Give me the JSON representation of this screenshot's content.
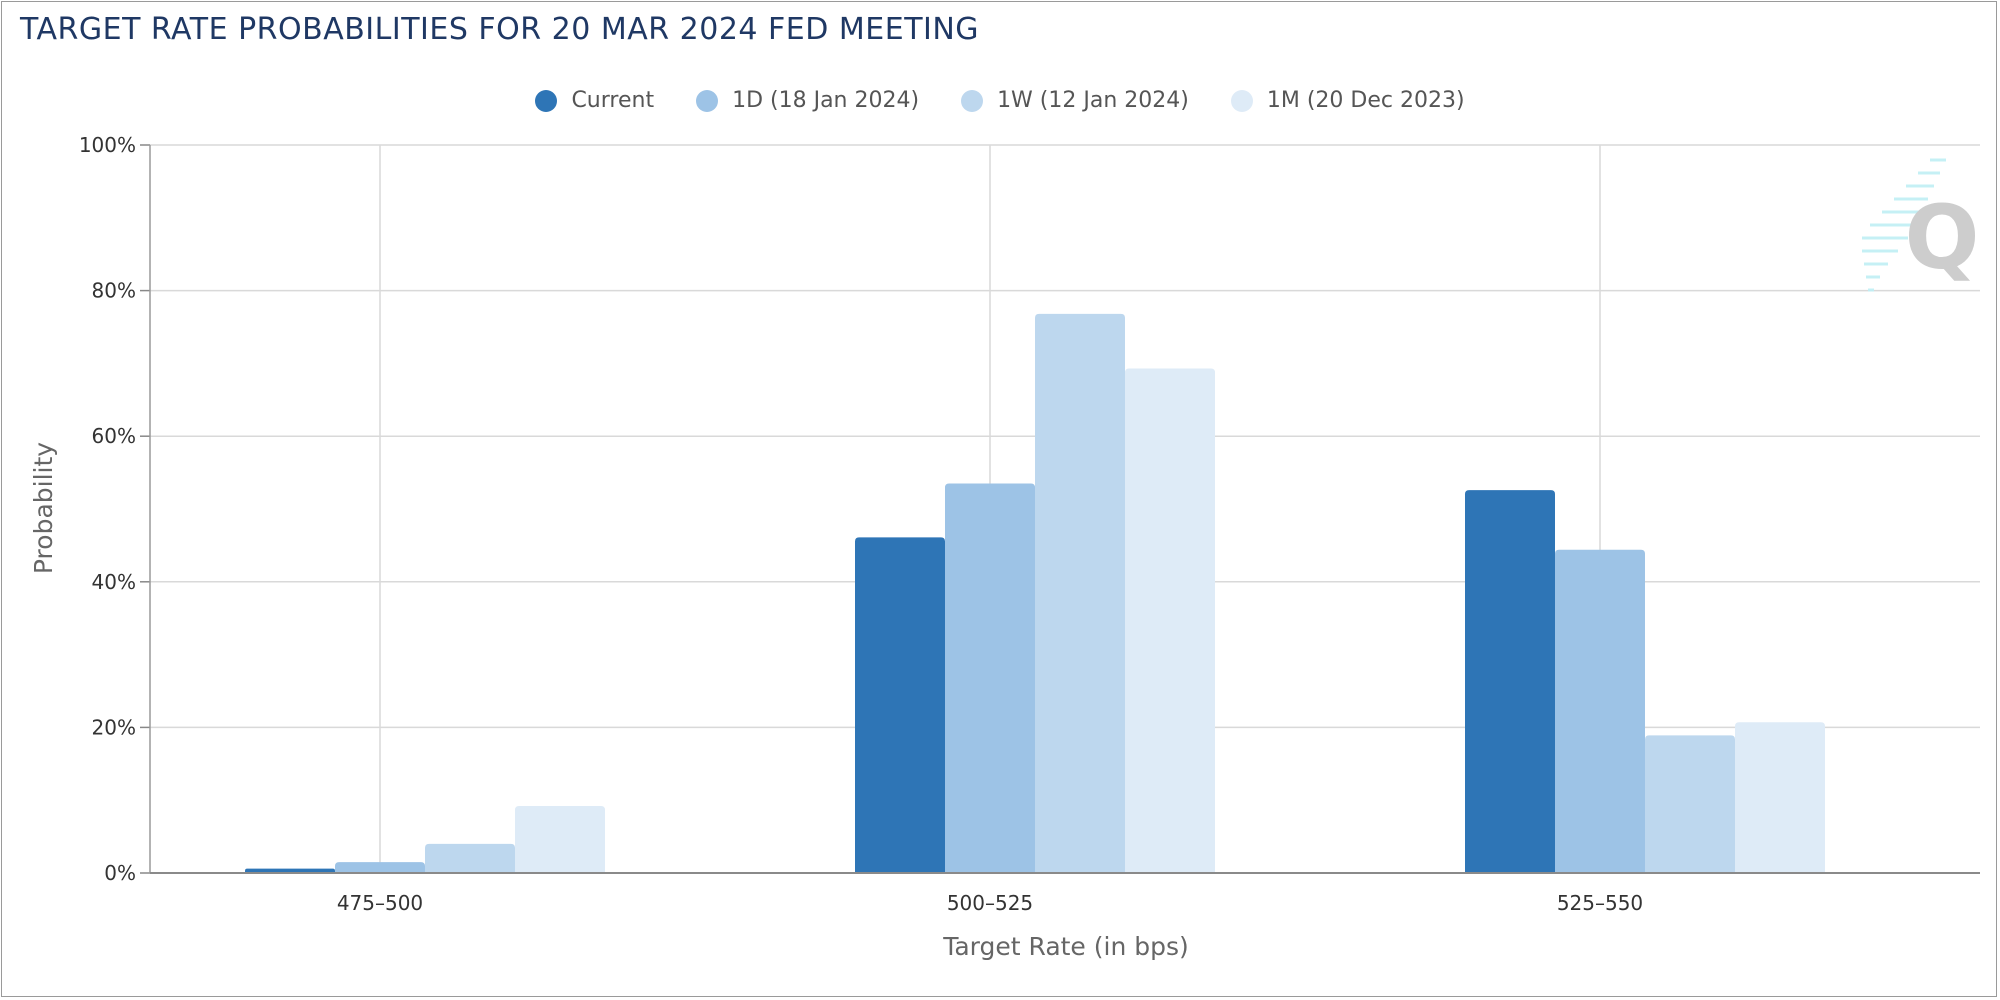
{
  "chart_data": {
    "type": "bar",
    "title": "TARGET RATE PROBABILITIES FOR 20 MAR 2024 FED MEETING",
    "xlabel": "Target Rate (in bps)",
    "ylabel": "Probability",
    "categories": [
      "475-500",
      "500-525",
      "525-550"
    ],
    "series": [
      {
        "name": "Current",
        "color": "#2e75b6",
        "values": [
          0.6,
          46.1,
          52.6
        ]
      },
      {
        "name": "1D (18 Jan 2024)",
        "color": "#9dc3e6",
        "values": [
          1.5,
          53.5,
          44.4
        ]
      },
      {
        "name": "1W (12 Jan 2024)",
        "color": "#bdd7ee",
        "values": [
          4.0,
          76.8,
          18.9
        ]
      },
      {
        "name": "1M (20 Dec 2023)",
        "color": "#deebf7",
        "values": [
          9.2,
          69.3,
          20.7
        ]
      }
    ],
    "ylim": [
      0,
      100
    ],
    "yticks": [
      "0%",
      "20%",
      "40%",
      "60%",
      "80%",
      "100%"
    ],
    "grid": true,
    "legend_position": "top-center"
  }
}
